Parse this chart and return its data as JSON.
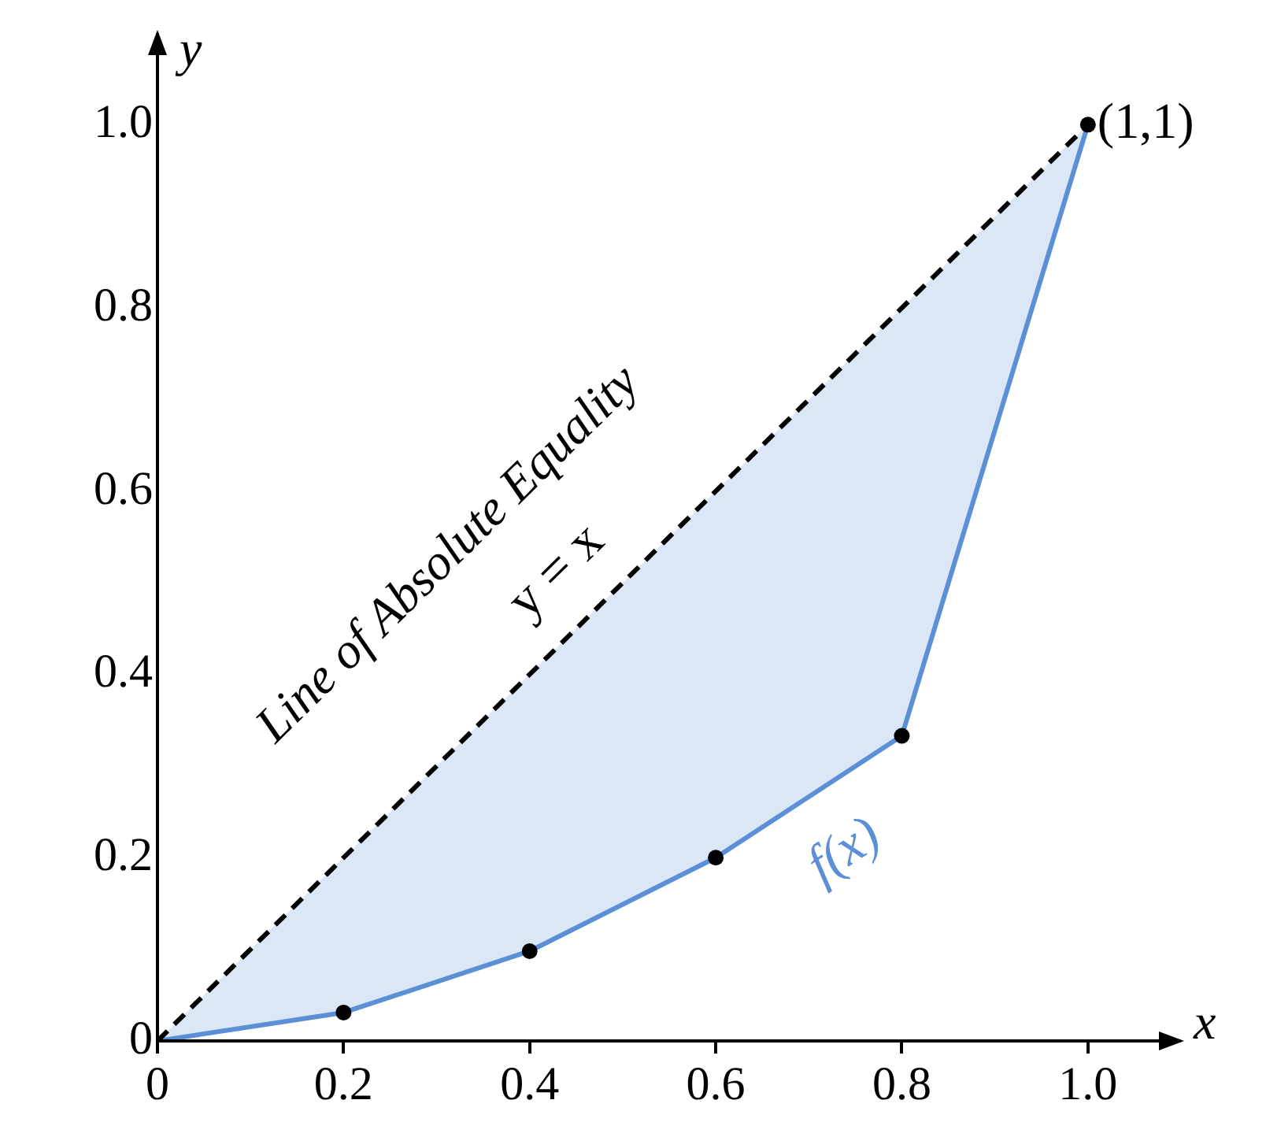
{
  "chart_data": {
    "type": "line",
    "xlabel": "x",
    "ylabel": "y",
    "xlim": [
      0,
      1.1
    ],
    "ylim": [
      0,
      1.1
    ],
    "xticks": [
      0,
      0.2,
      0.4,
      0.6,
      0.8,
      {
        "value": 1,
        "label": "1.0"
      }
    ],
    "yticks": [
      0,
      0.2,
      0.4,
      0.6,
      0.8,
      {
        "value": 1,
        "label": "1.0"
      }
    ],
    "grid": false,
    "legend": false,
    "series": [
      {
        "name": "y = x",
        "color": "#000000",
        "x": [
          0,
          1
        ],
        "values": [
          0,
          1
        ],
        "line_style": "dashed",
        "marker": "none"
      },
      {
        "name": "f(x)",
        "color": "#5b8fd6",
        "x": [
          0,
          0.2,
          0.4,
          0.6,
          0.8,
          1
        ],
        "values": [
          0,
          0.031,
          0.098,
          0.2,
          0.333,
          1
        ],
        "lower": [
          0,
          0.031,
          0.098,
          0.2,
          0.333,
          1
        ],
        "upper": [
          0,
          0.2,
          0.4,
          0.6,
          0.8,
          1
        ],
        "line_style": "solid",
        "marker": "none"
      },
      {
        "type": "scatter",
        "color": "#000000",
        "x": [
          0.2,
          0.4,
          0.6,
          0.8,
          1
        ],
        "values": [
          0.031,
          0.098,
          0.2,
          0.333,
          1
        ],
        "marker": "circle"
      }
    ],
    "annotations": [
      "Line of Absolute Equality",
      {
        "text": "(1,1)",
        "x": 1,
        "y": 1
      }
    ]
  }
}
